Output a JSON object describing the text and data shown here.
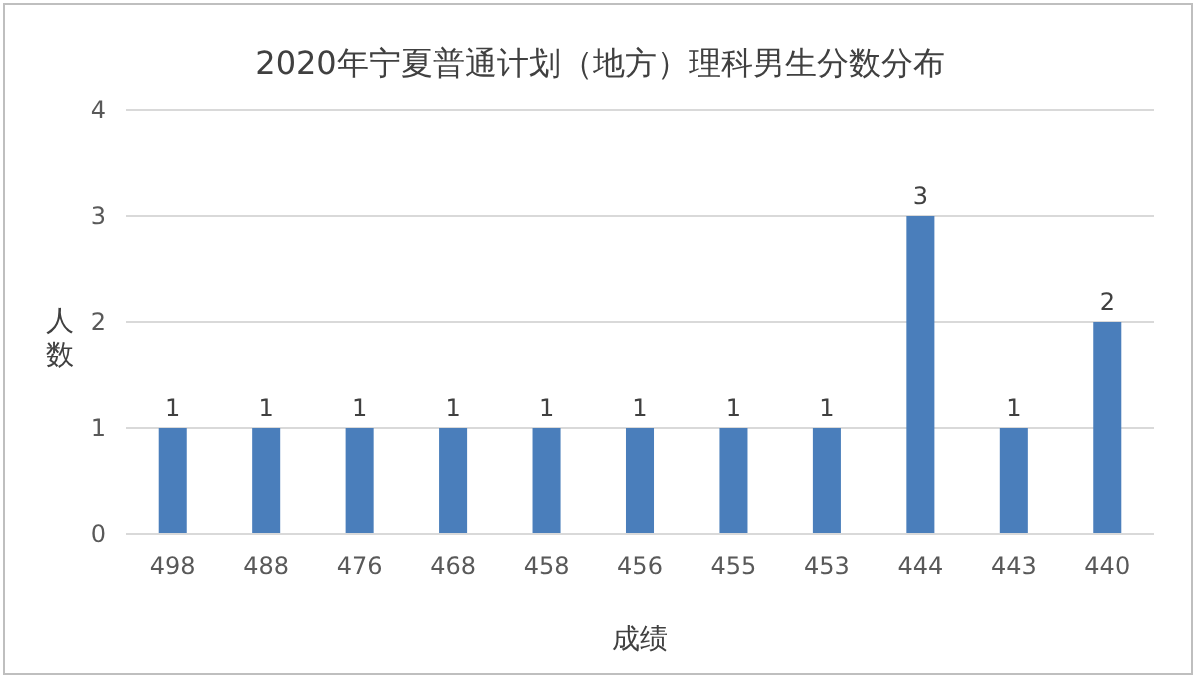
{
  "chart_data": {
    "type": "bar",
    "title": "2020年宁夏普通计划（地方）理科男生分数分布",
    "xlabel": "成绩",
    "ylabel": "人数",
    "categories": [
      "498",
      "488",
      "476",
      "468",
      "458",
      "456",
      "455",
      "453",
      "444",
      "443",
      "440"
    ],
    "values": [
      1,
      1,
      1,
      1,
      1,
      1,
      1,
      1,
      3,
      1,
      2
    ],
    "color": "#4a7ebb",
    "ylim": [
      0,
      4
    ],
    "yticks": [
      0,
      1,
      2,
      3,
      4
    ],
    "grid": "y",
    "data_labels": true
  }
}
